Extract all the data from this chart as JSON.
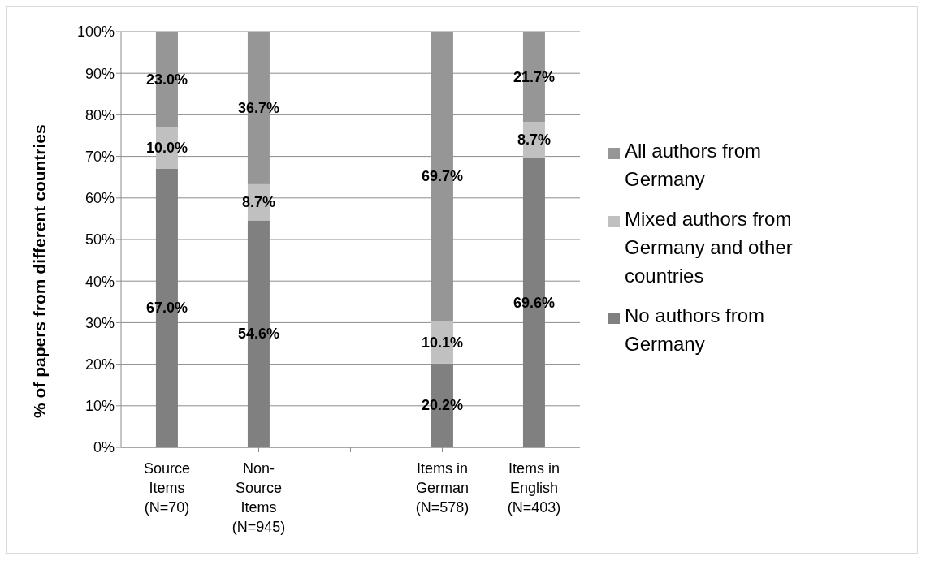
{
  "chart_data": {
    "type": "bar",
    "stacked": true,
    "categories": [
      "Source Items (N=70)",
      "Non-Source Items (N=945)",
      null,
      "Items in German (N=578)",
      "Items in English (N=403)"
    ],
    "series": [
      {
        "name": "No authors from Germany",
        "color": "#808080",
        "values": [
          67.0,
          54.6,
          null,
          20.2,
          69.6
        ],
        "value_labels": [
          "67.0%",
          "54.6%",
          null,
          "20.2%",
          "69.6%"
        ]
      },
      {
        "name": "Mixed authors from Germany and other countries",
        "color": "#c0c0c0",
        "values": [
          10.0,
          8.7,
          null,
          10.1,
          8.7
        ],
        "value_labels": [
          "10.0%",
          "8.7%",
          null,
          "10.1%",
          "8.7%"
        ]
      },
      {
        "name": "All authors from Germany",
        "color": "#969696",
        "values": [
          23.0,
          36.7,
          null,
          69.7,
          21.7
        ],
        "value_labels": [
          "23.0%",
          "36.7%",
          null,
          "69.7%",
          "21.7%"
        ]
      }
    ],
    "ylabel": "% of papers from different countries",
    "ylim": [
      0,
      100
    ],
    "yticks": [
      {
        "value": 0,
        "label": "0%"
      },
      {
        "value": 10,
        "label": "10%"
      },
      {
        "value": 20,
        "label": "20%"
      },
      {
        "value": 30,
        "label": "30%"
      },
      {
        "value": 40,
        "label": "40%"
      },
      {
        "value": 50,
        "label": "50%"
      },
      {
        "value": 60,
        "label": "60%"
      },
      {
        "value": 70,
        "label": "70%"
      },
      {
        "value": 80,
        "label": "80%"
      },
      {
        "value": 90,
        "label": "90%"
      },
      {
        "value": 100,
        "label": "100%"
      }
    ],
    "grid": "y",
    "legend": "right"
  }
}
